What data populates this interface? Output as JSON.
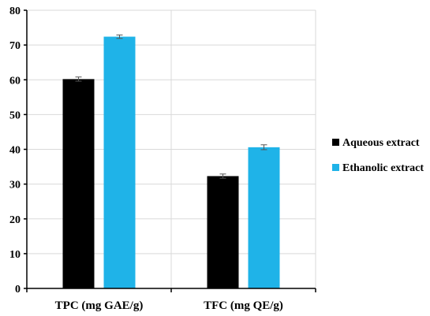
{
  "chart_data": {
    "type": "bar",
    "categories": [
      "TPC (mg GAE/g)",
      "TFC (mg QE/g)"
    ],
    "series": [
      {
        "name": "Aqueous extract",
        "values": [
          60.2,
          32.3
        ],
        "errors": [
          0.6,
          0.6
        ],
        "color": "#000000"
      },
      {
        "name": "Ethanolic extract",
        "values": [
          72.4,
          40.6
        ],
        "errors": [
          0.5,
          0.7
        ],
        "color": "#1fb3e8"
      }
    ],
    "ylim": [
      0,
      80
    ],
    "yticks": [
      0,
      10,
      20,
      30,
      40,
      50,
      60,
      70,
      80
    ],
    "grid": true,
    "legend": "right"
  }
}
